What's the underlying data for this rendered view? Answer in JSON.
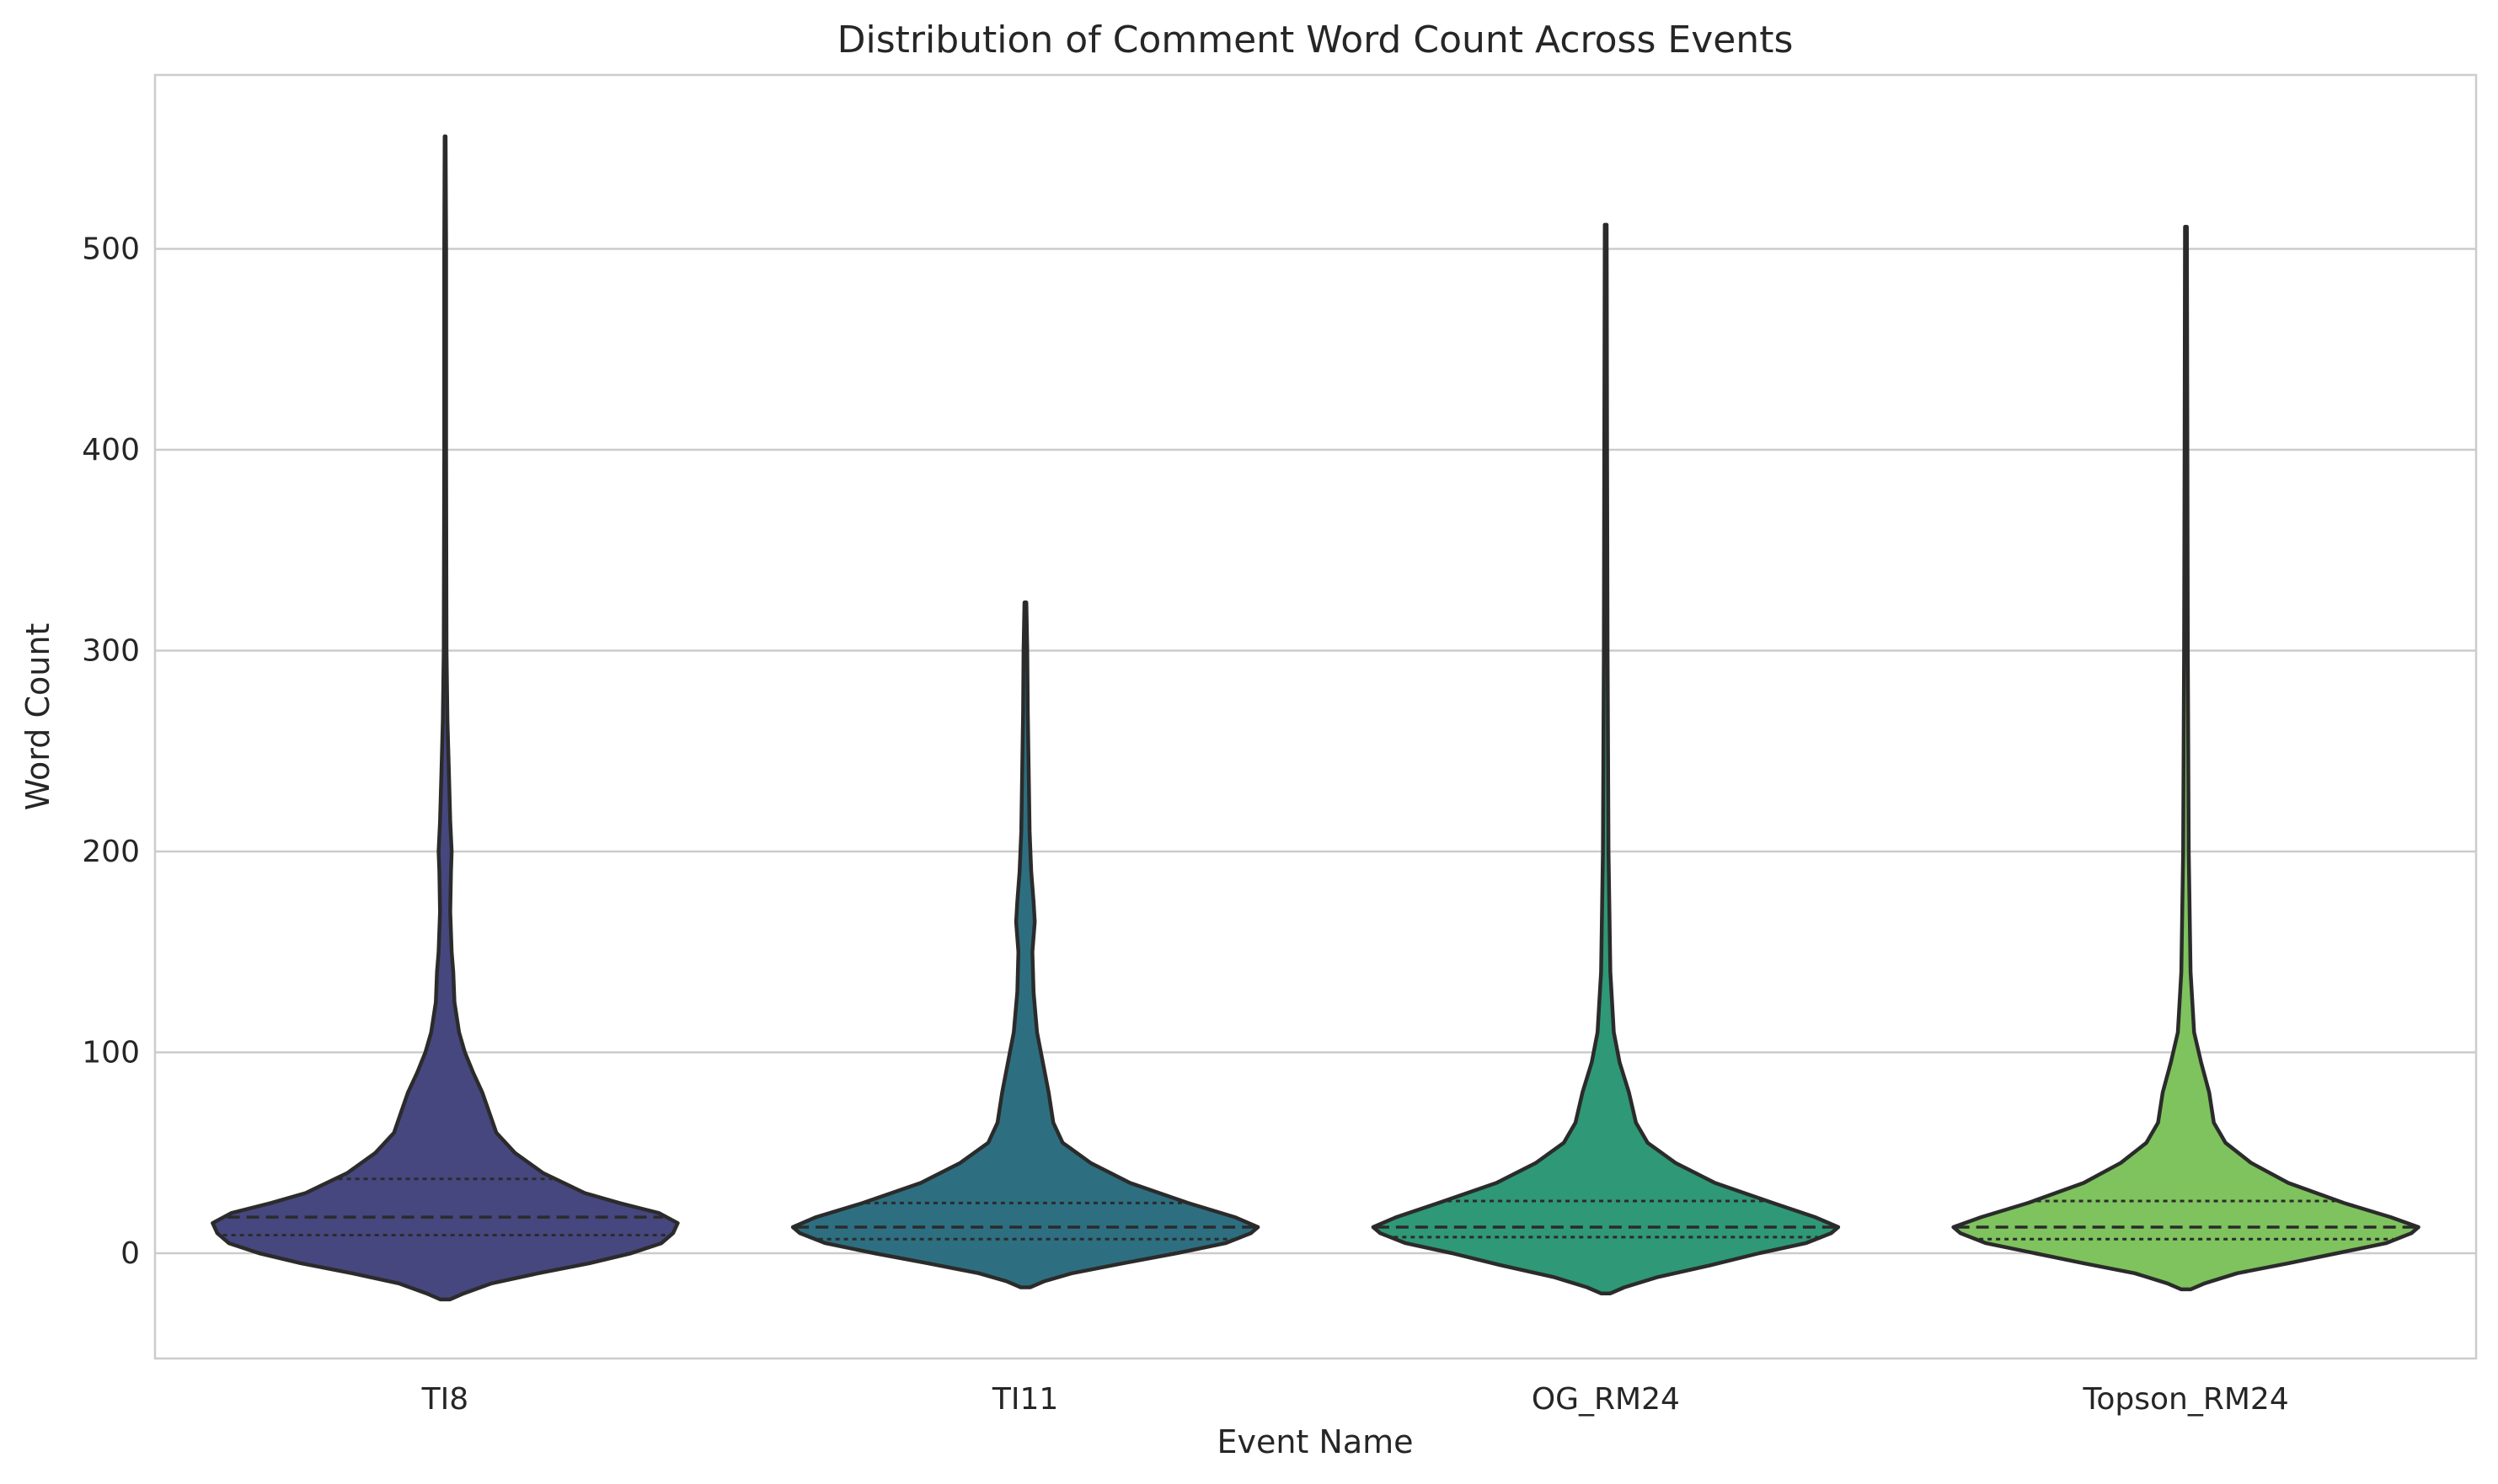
{
  "chart_data": {
    "type": "violin",
    "title": "Distribution of Comment Word Count Across Events",
    "xlabel": "Event Name",
    "ylabel": "Word Count",
    "ylim": [
      -52,
      586
    ],
    "yticks": [
      0,
      100,
      200,
      300,
      400,
      500
    ],
    "grid": "horizontal",
    "inner": "quartile",
    "categories": [
      "TI8",
      "TI11",
      "OG_RM24",
      "Topson_RM24"
    ],
    "series": [
      {
        "category": "TI8",
        "color": "#46477f",
        "min": -23,
        "max": 556,
        "quartiles": {
          "q1": 9,
          "median": 18,
          "q3": 37
        },
        "density": [
          [
            -23,
            0.02
          ],
          [
            -20,
            0.08
          ],
          [
            -15,
            0.2
          ],
          [
            -10,
            0.4
          ],
          [
            -5,
            0.62
          ],
          [
            0,
            0.8
          ],
          [
            5,
            0.93
          ],
          [
            10,
            0.98
          ],
          [
            15,
            1.0
          ],
          [
            20,
            0.92
          ],
          [
            25,
            0.75
          ],
          [
            30,
            0.6
          ],
          [
            40,
            0.42
          ],
          [
            50,
            0.3
          ],
          [
            60,
            0.22
          ],
          [
            70,
            0.19
          ],
          [
            80,
            0.16
          ],
          [
            90,
            0.12
          ],
          [
            100,
            0.085
          ],
          [
            110,
            0.06
          ],
          [
            125,
            0.04
          ],
          [
            140,
            0.035
          ],
          [
            150,
            0.028
          ],
          [
            170,
            0.022
          ],
          [
            190,
            0.025
          ],
          [
            200,
            0.028
          ],
          [
            215,
            0.022
          ],
          [
            240,
            0.016
          ],
          [
            265,
            0.01
          ],
          [
            300,
            0.006
          ],
          [
            400,
            0.004
          ],
          [
            500,
            0.004
          ],
          [
            556,
            0.002
          ]
        ]
      },
      {
        "category": "TI11",
        "color": "#2d6f80",
        "min": -17,
        "max": 324,
        "quartiles": {
          "q1": 7,
          "median": 13,
          "q3": 25
        },
        "density": [
          [
            -17,
            0.02
          ],
          [
            -14,
            0.08
          ],
          [
            -10,
            0.2
          ],
          [
            -5,
            0.42
          ],
          [
            0,
            0.65
          ],
          [
            5,
            0.86
          ],
          [
            10,
            0.97
          ],
          [
            13,
            1.0
          ],
          [
            18,
            0.9
          ],
          [
            25,
            0.7
          ],
          [
            35,
            0.45
          ],
          [
            45,
            0.28
          ],
          [
            55,
            0.16
          ],
          [
            65,
            0.12
          ],
          [
            80,
            0.1
          ],
          [
            95,
            0.075
          ],
          [
            110,
            0.05
          ],
          [
            130,
            0.035
          ],
          [
            150,
            0.03
          ],
          [
            165,
            0.04
          ],
          [
            175,
            0.035
          ],
          [
            190,
            0.025
          ],
          [
            210,
            0.018
          ],
          [
            240,
            0.014
          ],
          [
            270,
            0.01
          ],
          [
            300,
            0.008
          ],
          [
            324,
            0.004
          ]
        ]
      },
      {
        "category": "OG_RM24",
        "color": "#2f9876",
        "min": -20,
        "max": 512,
        "quartiles": {
          "q1": 8,
          "median": 13,
          "q3": 26
        },
        "density": [
          [
            -20,
            0.02
          ],
          [
            -17,
            0.08
          ],
          [
            -12,
            0.22
          ],
          [
            -6,
            0.45
          ],
          [
            0,
            0.66
          ],
          [
            5,
            0.86
          ],
          [
            10,
            0.97
          ],
          [
            13,
            1.0
          ],
          [
            18,
            0.9
          ],
          [
            25,
            0.72
          ],
          [
            35,
            0.47
          ],
          [
            45,
            0.3
          ],
          [
            55,
            0.18
          ],
          [
            65,
            0.13
          ],
          [
            80,
            0.1
          ],
          [
            95,
            0.06
          ],
          [
            110,
            0.035
          ],
          [
            140,
            0.02
          ],
          [
            200,
            0.012
          ],
          [
            300,
            0.008
          ],
          [
            400,
            0.006
          ],
          [
            512,
            0.004
          ]
        ]
      },
      {
        "category": "Topson_RM24",
        "color": "#7ec35e",
        "min": -18,
        "max": 511,
        "quartiles": {
          "q1": 7,
          "median": 13,
          "q3": 26
        },
        "density": [
          [
            -18,
            0.02
          ],
          [
            -15,
            0.08
          ],
          [
            -10,
            0.22
          ],
          [
            -5,
            0.44
          ],
          [
            0,
            0.65
          ],
          [
            5,
            0.86
          ],
          [
            10,
            0.97
          ],
          [
            13,
            1.0
          ],
          [
            18,
            0.88
          ],
          [
            25,
            0.68
          ],
          [
            35,
            0.44
          ],
          [
            45,
            0.28
          ],
          [
            55,
            0.17
          ],
          [
            65,
            0.12
          ],
          [
            80,
            0.1
          ],
          [
            95,
            0.065
          ],
          [
            110,
            0.035
          ],
          [
            140,
            0.02
          ],
          [
            200,
            0.012
          ],
          [
            300,
            0.008
          ],
          [
            400,
            0.006
          ],
          [
            511,
            0.004
          ]
        ]
      }
    ]
  }
}
